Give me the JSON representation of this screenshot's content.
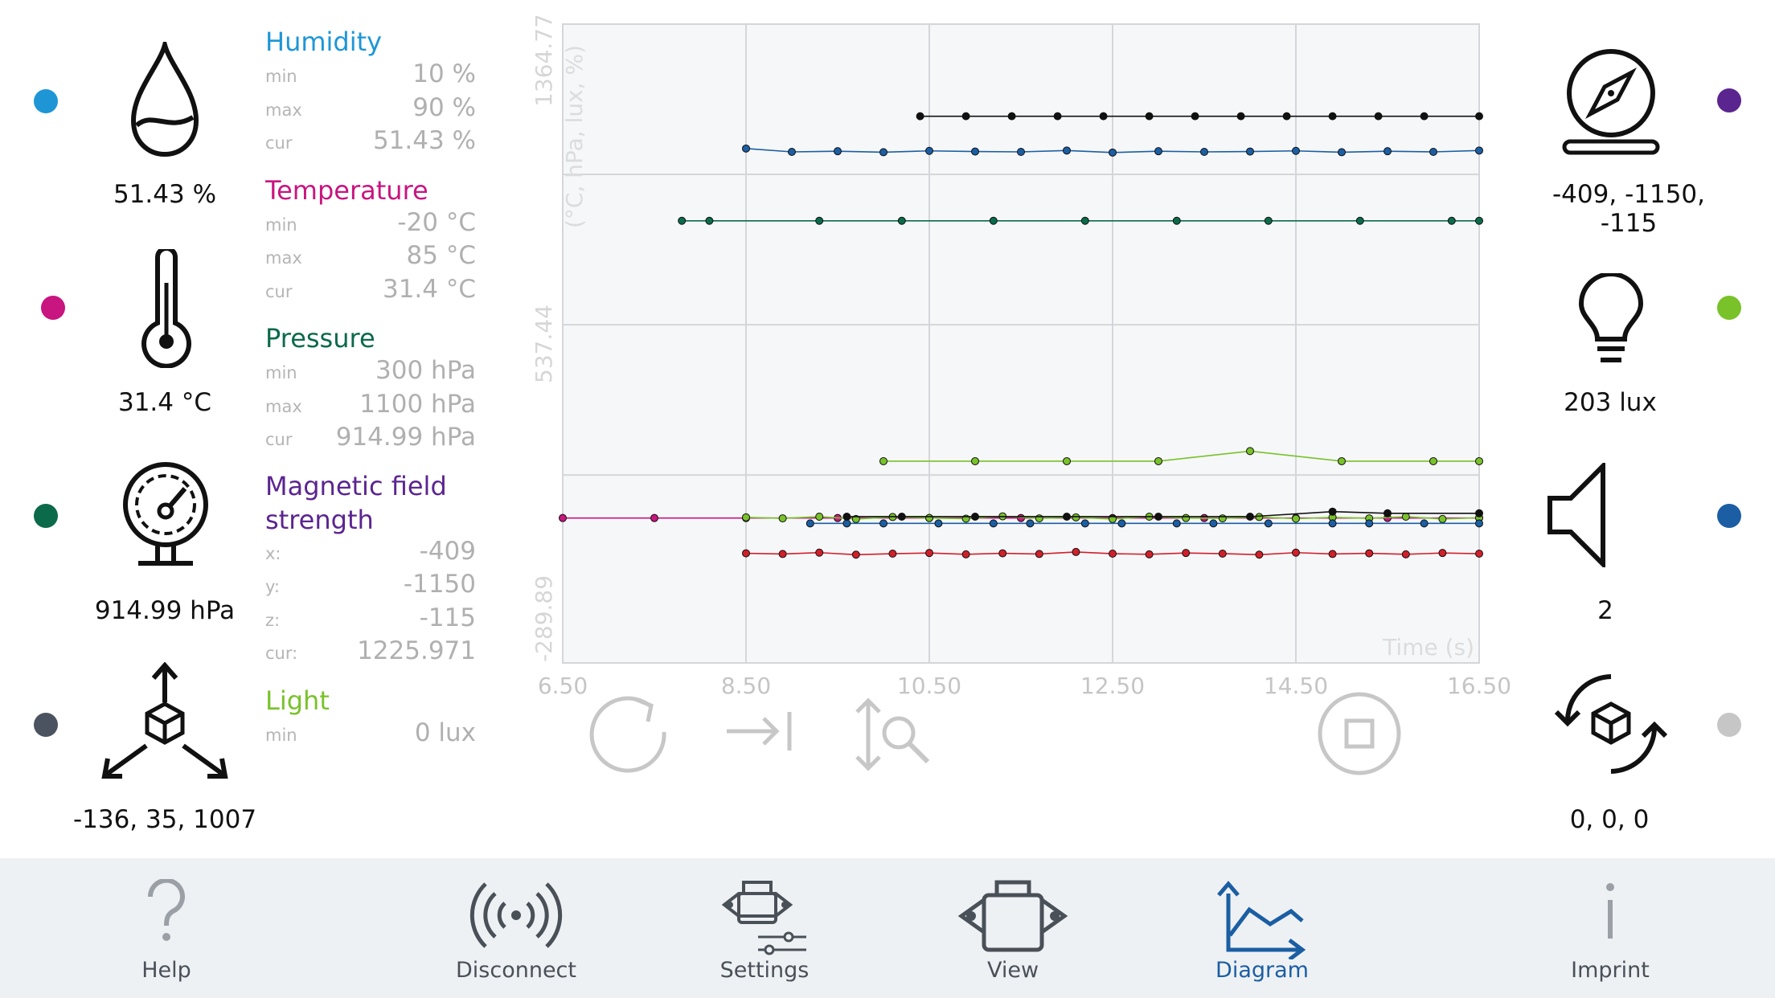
{
  "sensors_left": [
    {
      "key": "humidity",
      "icon": "droplet-icon",
      "value": "51.43 %",
      "color": "#1e96d6"
    },
    {
      "key": "temperature",
      "icon": "thermometer-icon",
      "value": "31.4 °C",
      "color": "#c8157f"
    },
    {
      "key": "pressure",
      "icon": "pressure-gauge-icon",
      "value": "914.99 hPa",
      "color": "#0b6a4a"
    },
    {
      "key": "acceleration",
      "icon": "axes-cube-icon",
      "value": "-136, 35, 1007",
      "color": "#4b5360"
    }
  ],
  "sensors_right": [
    {
      "key": "magnetic",
      "icon": "compass-icon",
      "value": "-409, -1150, -115",
      "color": "#5b2590"
    },
    {
      "key": "light",
      "icon": "lightbulb-icon",
      "value": "203 lux",
      "color": "#79c22a"
    },
    {
      "key": "sound",
      "icon": "speaker-icon",
      "value": "2",
      "color": "#1b5ea3"
    },
    {
      "key": "gyroscope",
      "icon": "rotation-cube-icon",
      "value": "0, 0, 0",
      "color": "#c6c6c6"
    }
  ],
  "stats": {
    "humidity": {
      "title": "Humidity",
      "color": "#1e96d6",
      "rows": [
        {
          "k": "min",
          "v": "10 %"
        },
        {
          "k": "max",
          "v": "90 %"
        },
        {
          "k": "cur",
          "v": "51.43 %"
        }
      ]
    },
    "temperature": {
      "title": "Temperature",
      "color": "#c8157f",
      "rows": [
        {
          "k": "min",
          "v": "-20 °C"
        },
        {
          "k": "max",
          "v": "85 °C"
        },
        {
          "k": "cur",
          "v": "31.4 °C"
        }
      ]
    },
    "pressure": {
      "title": "Pressure",
      "color": "#0b6a4a",
      "rows": [
        {
          "k": "min",
          "v": "300 hPa"
        },
        {
          "k": "max",
          "v": "1100 hPa"
        },
        {
          "k": "cur",
          "v": "914.99 hPa"
        }
      ]
    },
    "magnetic": {
      "title": "Magnetic field strength",
      "color": "#5b2590",
      "rows": [
        {
          "k": "x:",
          "v": "-409"
        },
        {
          "k": "y:",
          "v": "-1150"
        },
        {
          "k": "z:",
          "v": "-115"
        },
        {
          "k": "cur:",
          "v": "1225.971"
        }
      ]
    },
    "light": {
      "title": "Light",
      "color": "#79c22a",
      "rows": [
        {
          "k": "min",
          "v": "0 lux"
        }
      ]
    }
  },
  "chart_data": {
    "type": "line",
    "ylabel": "(°C, hPa, lux, %)",
    "xlabel": "Time (s)",
    "x_ticks": [
      "6.50",
      "8.50",
      "10.50",
      "12.50",
      "14.50",
      "16.50"
    ],
    "y_ticks": [
      "1364.77",
      "537.44",
      "-289.89"
    ],
    "xlim": [
      6.5,
      16.5
    ],
    "ylim": [
      -400,
      1500
    ],
    "grid": true,
    "series": [
      {
        "color": "#111111",
        "x": [
          10.4,
          10.9,
          11.4,
          11.9,
          12.4,
          12.9,
          13.4,
          13.9,
          14.4,
          14.9,
          15.4,
          15.9,
          16.5
        ],
        "y": [
          1226,
          1226,
          1226,
          1226,
          1226,
          1226,
          1226,
          1226,
          1226,
          1226,
          1226,
          1226,
          1226
        ]
      },
      {
        "color": "#1b5ea3",
        "x": [
          8.5,
          9.0,
          9.5,
          10.0,
          10.5,
          11.0,
          11.5,
          12.0,
          12.5,
          13.0,
          13.5,
          14.0,
          14.5,
          15.0,
          15.5,
          16.0,
          16.5
        ],
        "y": [
          1130,
          1120,
          1122,
          1119,
          1123,
          1121,
          1120,
          1124,
          1118,
          1122,
          1120,
          1121,
          1123,
          1119,
          1122,
          1120,
          1124
        ]
      },
      {
        "color": "#0b6a4a",
        "x": [
          7.8,
          8.1,
          9.3,
          10.2,
          11.2,
          12.2,
          13.2,
          14.2,
          15.2,
          16.2,
          16.5
        ],
        "y": [
          915,
          915,
          915,
          915,
          915,
          915,
          915,
          915,
          915,
          915,
          915
        ]
      },
      {
        "color": "#79c22a",
        "x": [
          10.0,
          11.0,
          12.0,
          13.0,
          14.0,
          15.0,
          16.0,
          16.5
        ],
        "y": [
          200,
          200,
          200,
          200,
          230,
          200,
          200,
          200
        ]
      },
      {
        "color": "#c8157f",
        "x": [
          6.5,
          7.5,
          8.5,
          9.5,
          10.5,
          11.5,
          12.5,
          13.5,
          14.5,
          15.5,
          16.5
        ],
        "y": [
          31,
          31,
          31,
          31,
          31,
          31,
          31,
          31,
          31,
          31,
          31
        ]
      },
      {
        "color": "#79c22a",
        "x": [
          8.5,
          8.9,
          9.3,
          9.7,
          10.1,
          10.5,
          10.9,
          11.3,
          11.7,
          12.1,
          12.5,
          12.9,
          13.3,
          13.7,
          14.1,
          14.5,
          14.9,
          15.3,
          15.7,
          16.1,
          16.5
        ],
        "y": [
          33,
          30,
          35,
          28,
          34,
          31,
          29,
          36,
          30,
          33,
          28,
          35,
          31,
          30,
          34,
          29,
          33,
          30,
          35,
          28,
          32
        ]
      },
      {
        "color": "#1b5ea3",
        "x": [
          9.2,
          9.6,
          10.0,
          10.6,
          11.2,
          11.6,
          12.2,
          12.6,
          13.2,
          13.6,
          14.2,
          14.9,
          15.3,
          15.9,
          16.5
        ],
        "y": [
          15,
          15,
          15,
          15,
          15,
          15,
          15,
          15,
          15,
          15,
          15,
          15,
          15,
          15,
          15
        ]
      },
      {
        "color": "#111111",
        "x": [
          9.6,
          10.2,
          11.0,
          12.0,
          13.0,
          14.0,
          14.9,
          15.5,
          16.5
        ],
        "y": [
          35,
          35,
          35,
          35,
          35,
          35,
          50,
          45,
          45
        ]
      },
      {
        "color": "#d0202a",
        "x": [
          8.5,
          8.9,
          9.3,
          9.7,
          10.1,
          10.5,
          10.9,
          11.3,
          11.7,
          12.1,
          12.5,
          12.9,
          13.3,
          13.7,
          14.1,
          14.5,
          14.9,
          15.3,
          15.7,
          16.1,
          16.5
        ],
        "y": [
          -74,
          -76,
          -72,
          -78,
          -75,
          -73,
          -77,
          -74,
          -76,
          -70,
          -75,
          -77,
          -73,
          -75,
          -78,
          -72,
          -76,
          -74,
          -77,
          -73,
          -75
        ]
      }
    ]
  },
  "controls": [
    {
      "name": "refresh-button",
      "icon": "refresh-icon"
    },
    {
      "name": "jump-to-end-button",
      "icon": "arrow-to-end-icon"
    },
    {
      "name": "zoom-y-button",
      "icon": "zoom-vertical-icon"
    },
    {
      "name": "stop-button",
      "icon": "stop-icon"
    }
  ],
  "nav": [
    {
      "key": "help",
      "label": "Help",
      "icon": "question-icon",
      "active": false
    },
    {
      "key": "disconnect",
      "label": "Disconnect",
      "icon": "broadcast-icon",
      "active": false
    },
    {
      "key": "settings",
      "label": "Settings",
      "icon": "device-settings-icon",
      "active": false
    },
    {
      "key": "view",
      "label": "View",
      "icon": "device-icon",
      "active": false
    },
    {
      "key": "diagram",
      "label": "Diagram",
      "icon": "chart-icon",
      "active": true
    },
    {
      "key": "imprint",
      "label": "Imprint",
      "icon": "info-icon",
      "active": false
    }
  ]
}
